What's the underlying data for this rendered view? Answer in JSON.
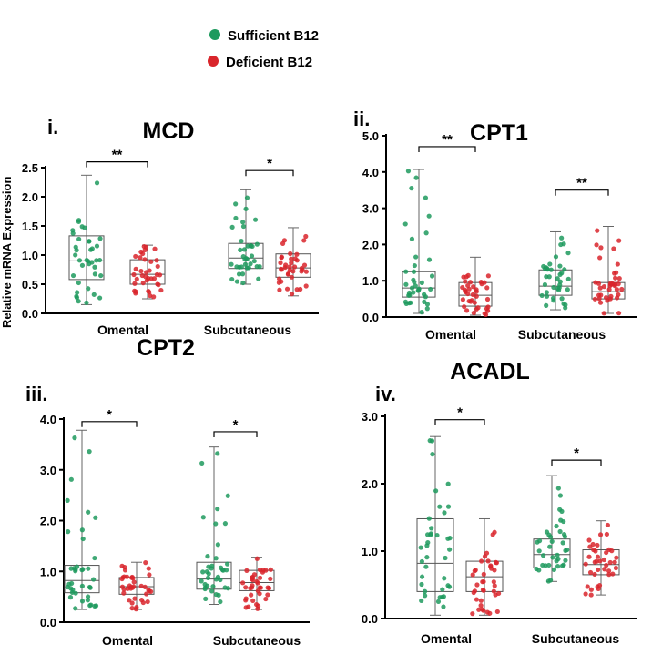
{
  "legend": {
    "items": [
      {
        "label": "Sufficient B12",
        "color": "#1e9a5e"
      },
      {
        "label": "Deficient B12",
        "color": "#d9252b"
      }
    ]
  },
  "y_axis_label": "Relative mRNA Expression",
  "colors": {
    "sufficient": "#1e9a5e",
    "deficient": "#d9252b",
    "axis": "#000000",
    "box": "#555555"
  },
  "chart_data": [
    {
      "type": "box",
      "panel": "i.",
      "title": "MCD",
      "categories": [
        "Omental",
        "Subcutaneous"
      ],
      "ylim": [
        0,
        2.5
      ],
      "yticks": [
        "0.0",
        "0.5",
        "1.0",
        "1.5",
        "2.0",
        "2.5"
      ],
      "series": [
        {
          "name": "Sufficient B12",
          "boxes": [
            {
              "category": "Omental",
              "min": 0.15,
              "q1": 0.58,
              "median": 0.9,
              "q3": 1.33,
              "max": 2.37
            },
            {
              "category": "Subcutaneous",
              "min": 0.5,
              "q1": 0.77,
              "median": 0.95,
              "q3": 1.2,
              "max": 2.12
            }
          ]
        },
        {
          "name": "Deficient B12",
          "boxes": [
            {
              "category": "Omental",
              "min": 0.25,
              "q1": 0.5,
              "median": 0.67,
              "q3": 0.92,
              "max": 1.17
            },
            {
              "category": "Subcutaneous",
              "min": 0.3,
              "q1": 0.62,
              "median": 0.78,
              "q3": 1.02,
              "max": 1.47
            }
          ]
        }
      ],
      "significance": [
        {
          "category": "Omental",
          "label": "**",
          "y": 2.6
        },
        {
          "category": "Subcutaneous",
          "label": "*",
          "y": 2.45
        }
      ]
    },
    {
      "type": "box",
      "panel": "ii.",
      "title": "CPT1",
      "categories": [
        "Omental",
        "Subcutaneous"
      ],
      "ylim": [
        0,
        5
      ],
      "yticks": [
        "0.0",
        "1.0",
        "2.0",
        "3.0",
        "4.0",
        "5.0"
      ],
      "series": [
        {
          "name": "Sufficient B12",
          "boxes": [
            {
              "category": "Omental",
              "min": 0.1,
              "q1": 0.55,
              "median": 0.8,
              "q3": 1.25,
              "max": 4.07
            },
            {
              "category": "Subcutaneous",
              "min": 0.2,
              "q1": 0.6,
              "median": 0.85,
              "q3": 1.3,
              "max": 2.35
            }
          ]
        },
        {
          "name": "Deficient B12",
          "boxes": [
            {
              "category": "Omental",
              "min": 0.05,
              "q1": 0.3,
              "median": 0.6,
              "q3": 0.95,
              "max": 1.65
            },
            {
              "category": "Subcutaneous",
              "min": 0.1,
              "q1": 0.5,
              "median": 0.7,
              "q3": 0.95,
              "max": 2.5
            }
          ]
        }
      ],
      "significance": [
        {
          "category": "Omental",
          "label": "**",
          "y": 4.7
        },
        {
          "category": "Subcutaneous",
          "label": "**",
          "y": 3.5
        }
      ]
    },
    {
      "type": "box",
      "panel": "iii.",
      "title": "CPT2",
      "categories": [
        "Omental",
        "Subcutaneous"
      ],
      "ylim": [
        0,
        4
      ],
      "yticks": [
        "0.0",
        "1.0",
        "2.0",
        "3.0",
        "4.0"
      ],
      "series": [
        {
          "name": "Sufficient B12",
          "boxes": [
            {
              "category": "Omental",
              "min": 0.25,
              "q1": 0.58,
              "median": 0.82,
              "q3": 1.12,
              "max": 3.78
            },
            {
              "category": "Subcutaneous",
              "min": 0.35,
              "q1": 0.65,
              "median": 0.85,
              "q3": 1.18,
              "max": 3.45
            }
          ]
        },
        {
          "name": "Deficient B12",
          "boxes": [
            {
              "category": "Omental",
              "min": 0.25,
              "q1": 0.55,
              "median": 0.7,
              "q3": 0.88,
              "max": 1.18
            },
            {
              "category": "Subcutaneous",
              "min": 0.25,
              "q1": 0.62,
              "median": 0.78,
              "q3": 1.02,
              "max": 1.28
            }
          ]
        }
      ],
      "significance": [
        {
          "category": "Omental",
          "label": "*",
          "y": 3.95
        },
        {
          "category": "Subcutaneous",
          "label": "*",
          "y": 3.75
        }
      ]
    },
    {
      "type": "box",
      "panel": "iv.",
      "title": "ACADL",
      "categories": [
        "Omental",
        "Subcutaneous"
      ],
      "ylim": [
        0,
        3
      ],
      "yticks": [
        "0.0",
        "1.0",
        "2.0",
        "3.0"
      ],
      "series": [
        {
          "name": "Sufficient B12",
          "boxes": [
            {
              "category": "Omental",
              "min": 0.05,
              "q1": 0.4,
              "median": 0.82,
              "q3": 1.48,
              "max": 2.7
            },
            {
              "category": "Subcutaneous",
              "min": 0.55,
              "q1": 0.75,
              "median": 0.95,
              "q3": 1.18,
              "max": 2.12
            }
          ]
        },
        {
          "name": "Deficient B12",
          "boxes": [
            {
              "category": "Omental",
              "min": 0.05,
              "q1": 0.4,
              "median": 0.62,
              "q3": 0.85,
              "max": 1.48
            },
            {
              "category": "Subcutaneous",
              "min": 0.35,
              "q1": 0.65,
              "median": 0.8,
              "q3": 1.02,
              "max": 1.45
            }
          ]
        }
      ],
      "significance": [
        {
          "category": "Omental",
          "label": "*",
          "y": 2.95
        },
        {
          "category": "Subcutaneous",
          "label": "*",
          "y": 2.35
        }
      ]
    }
  ]
}
